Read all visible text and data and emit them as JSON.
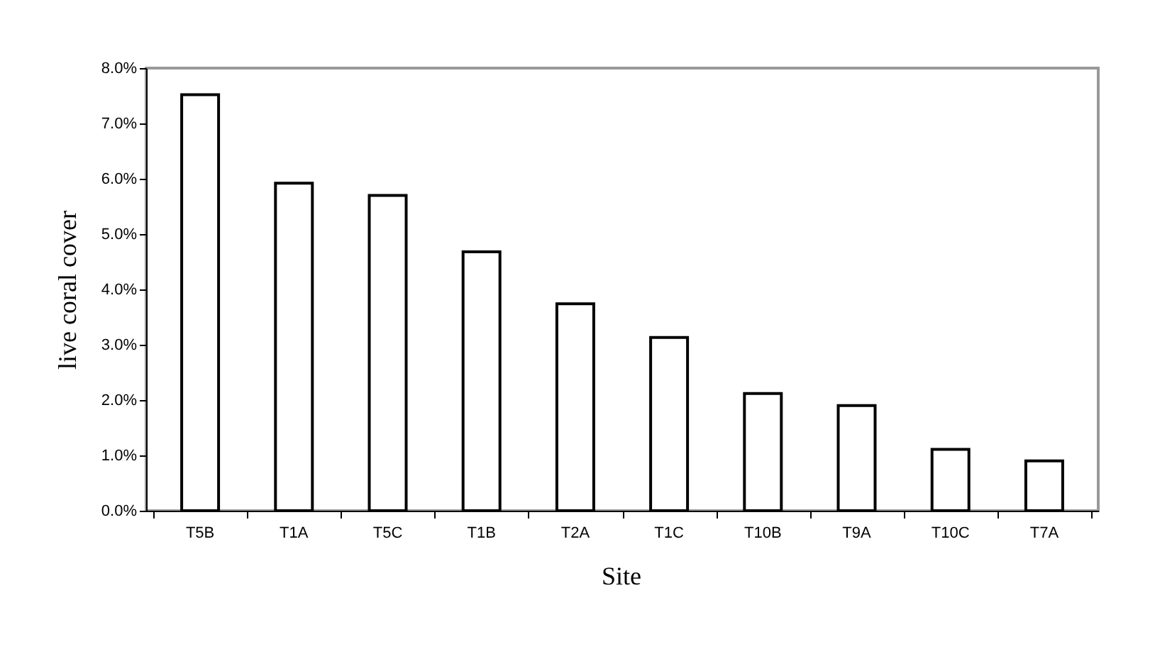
{
  "chart_data": {
    "type": "bar",
    "xlabel": "Site",
    "ylabel": "live coral cover",
    "categories": [
      "T5B",
      "T1A",
      "T5C",
      "T1B",
      "T2A",
      "T1C",
      "T10B",
      "T9A",
      "T10C",
      "T7A"
    ],
    "values": [
      7.52,
      5.92,
      5.7,
      4.68,
      3.74,
      3.13,
      2.12,
      1.9,
      1.11,
      0.9
    ],
    "color": "#ffffff",
    "ylim": [
      0,
      8
    ],
    "yticks": [
      {
        "value": 0,
        "label": "0.0%"
      },
      {
        "value": 1,
        "label": "1.0%"
      },
      {
        "value": 2,
        "label": "2.0%"
      },
      {
        "value": 3,
        "label": "3.0%"
      },
      {
        "value": 4,
        "label": "4.0%"
      },
      {
        "value": 5,
        "label": "5.0%"
      },
      {
        "value": 6,
        "label": "6.0%"
      },
      {
        "value": 7,
        "label": "7.0%"
      },
      {
        "value": 8,
        "label": "8.0%"
      }
    ],
    "grid": false
  }
}
